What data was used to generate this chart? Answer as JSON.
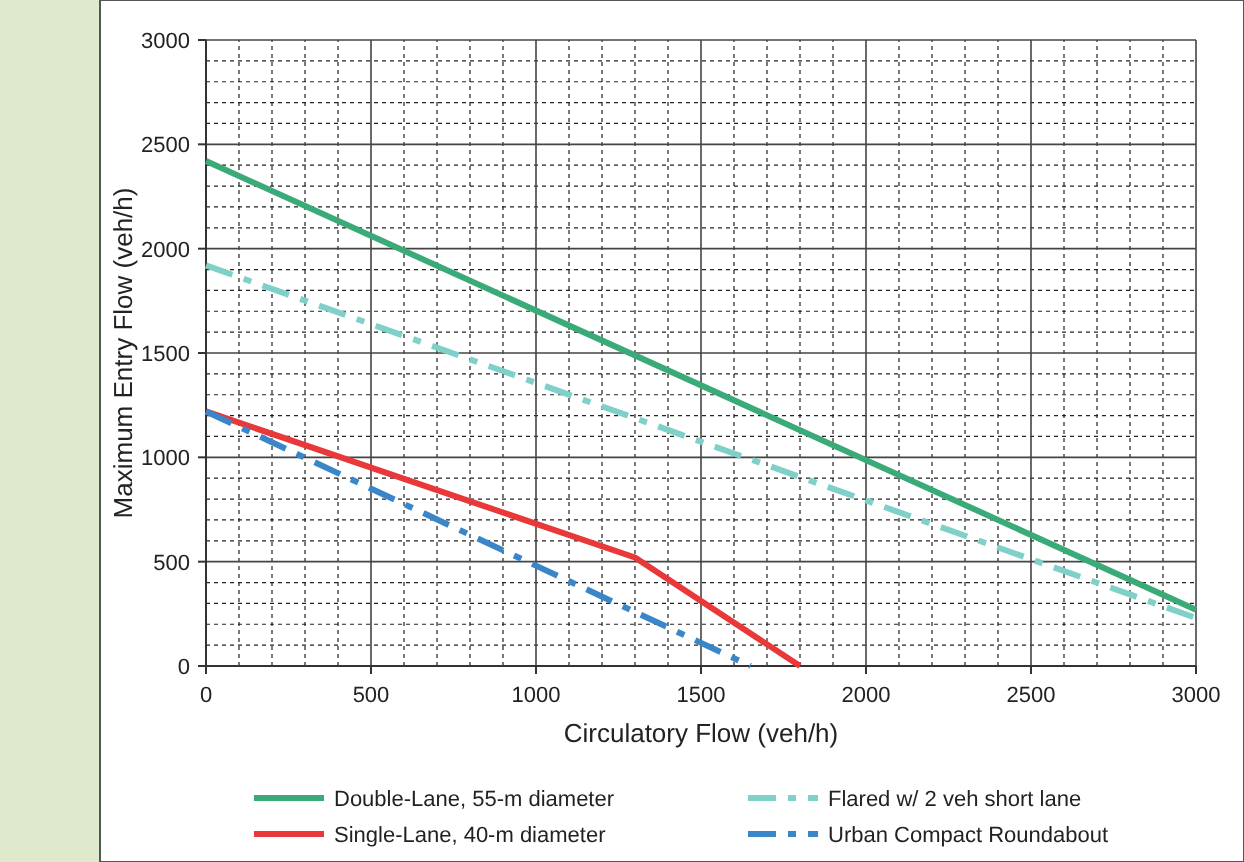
{
  "chart_data": {
    "type": "line",
    "xlabel": "Circulatory Flow (veh/h)",
    "ylabel": "Maximum Entry Flow (veh/h)",
    "xlim": [
      0,
      3000
    ],
    "ylim": [
      0,
      3000
    ],
    "xticks": [
      0,
      500,
      1000,
      1500,
      2000,
      2500,
      3000
    ],
    "yticks": [
      0,
      500,
      1000,
      1500,
      2000,
      2500,
      3000
    ],
    "grid": true,
    "legend": "bottom",
    "marker": "none",
    "series": [
      {
        "name": "Double-Lane, 55-m diameter",
        "color": "#3aaa78",
        "x": [
          0,
          3000
        ],
        "values": [
          2420,
          270
        ],
        "line_style": "solid"
      },
      {
        "name": "Flared w/ 2 veh short lane",
        "color": "#7fd0c8",
        "x": [
          0,
          3000
        ],
        "values": [
          1920,
          230
        ],
        "line_style": "dashed"
      },
      {
        "name": "Single-Lane, 40-m diameter",
        "color": "#e8383a",
        "x": [
          0,
          1300,
          1800
        ],
        "values": [
          1220,
          520,
          0
        ],
        "line_style": "solid"
      },
      {
        "name": "Urban Compact Roundabout",
        "color": "#3a86c8",
        "x": [
          0,
          1650
        ],
        "values": [
          1220,
          0
        ],
        "line_style": "dashed"
      }
    ]
  }
}
